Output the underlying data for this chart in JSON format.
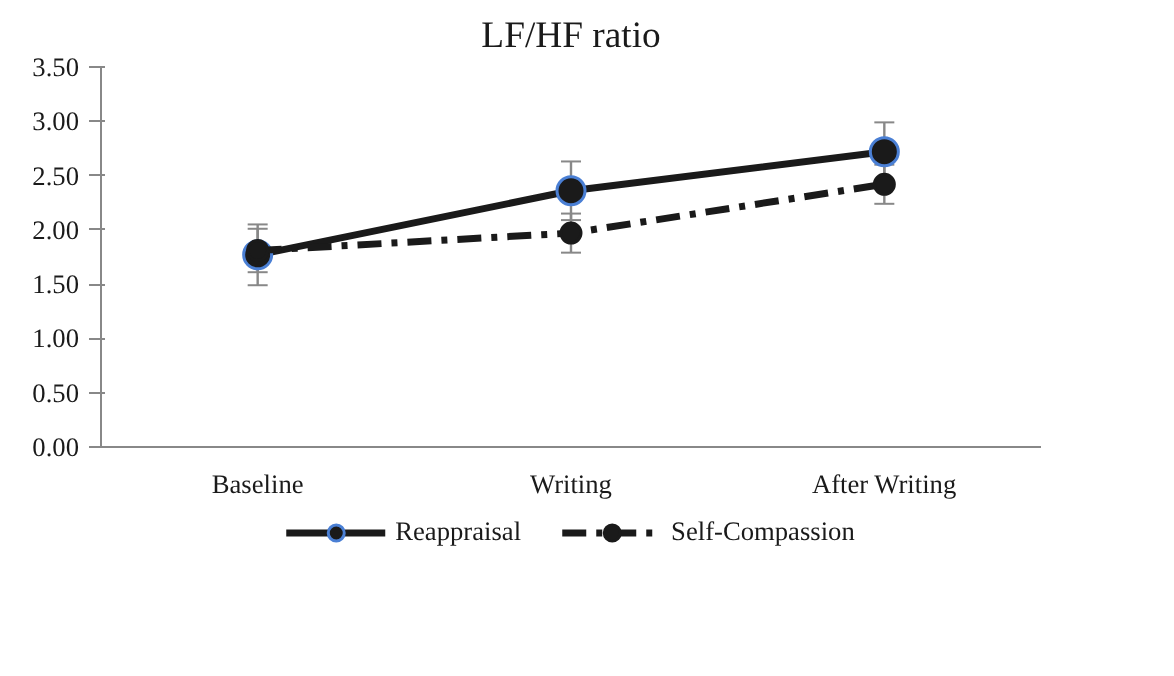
{
  "chart_data": {
    "type": "line",
    "title": "LF/HF ratio",
    "categories": [
      "Baseline",
      "Writing",
      "After Writing"
    ],
    "series": [
      {
        "name": "Reappraisal",
        "color": "#1a1a1a",
        "values": [
          1.77,
          2.36,
          2.72
        ],
        "errors": [
          0.28,
          0.27,
          0.27
        ],
        "line_style": "solid"
      },
      {
        "name": "Self-Compassion",
        "color": "#1a1a1a",
        "values": [
          1.81,
          1.97,
          2.42
        ],
        "errors": [
          0.2,
          0.18,
          0.18
        ],
        "line_style": "dashed"
      }
    ],
    "ylim": [
      0,
      3.5
    ],
    "yticks": [
      {
        "value": 0,
        "label": "0.00"
      },
      {
        "value": 0.5,
        "label": "0.50"
      },
      {
        "value": 1,
        "label": "1.00"
      },
      {
        "value": 1.5,
        "label": "1.50"
      },
      {
        "value": 2,
        "label": "2.00"
      },
      {
        "value": 2.5,
        "label": "2.50"
      },
      {
        "value": 3,
        "label": "3.00"
      },
      {
        "value": 3.5,
        "label": "3.50"
      }
    ],
    "grid": false,
    "legend": "bottom",
    "marker": "circle"
  }
}
